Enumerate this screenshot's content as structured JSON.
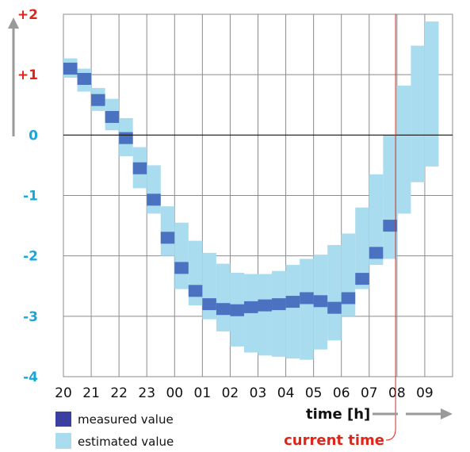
{
  "chart_data": {
    "type": "range-bar",
    "categories": [
      "20",
      "21",
      "22",
      "23",
      "00",
      "01",
      "02",
      "03",
      "04",
      "05",
      "06",
      "07",
      "08",
      "09"
    ],
    "ylim": [
      -4,
      2
    ],
    "y_ticks": [
      {
        "value": 2,
        "label": "+2",
        "color": "#e0261b"
      },
      {
        "value": 1,
        "label": "+1",
        "color": "#e0261b"
      },
      {
        "value": 0,
        "label": "0",
        "color": "#1aa6d9"
      },
      {
        "value": -1,
        "label": "-1",
        "color": "#1aa6d9"
      },
      {
        "value": -2,
        "label": "-2",
        "color": "#1aa6d9"
      },
      {
        "value": -3,
        "label": "-3",
        "color": "#1aa6d9"
      },
      {
        "value": -4,
        "label": "-4",
        "color": "#1aa6d9"
      }
    ],
    "x_domain": [
      20,
      33
    ],
    "series": [
      {
        "name": "measured value",
        "color": "#4a72c0",
        "points": [
          {
            "x": 20.25,
            "y": 1.1
          },
          {
            "x": 20.75,
            "y": 0.93
          },
          {
            "x": 21.25,
            "y": 0.58
          },
          {
            "x": 21.75,
            "y": 0.3
          },
          {
            "x": 22.25,
            "y": -0.05
          },
          {
            "x": 22.75,
            "y": -0.55
          },
          {
            "x": 23.25,
            "y": -1.07
          },
          {
            "x": 23.75,
            "y": -1.7
          },
          {
            "x": 24.25,
            "y": -2.2
          },
          {
            "x": 24.75,
            "y": -2.58
          },
          {
            "x": 25.25,
            "y": -2.8
          },
          {
            "x": 25.75,
            "y": -2.88
          },
          {
            "x": 26.25,
            "y": -2.9
          },
          {
            "x": 26.75,
            "y": -2.85
          },
          {
            "x": 27.25,
            "y": -2.82
          },
          {
            "x": 27.75,
            "y": -2.8
          },
          {
            "x": 28.25,
            "y": -2.76
          },
          {
            "x": 28.75,
            "y": -2.7
          },
          {
            "x": 29.25,
            "y": -2.75
          },
          {
            "x": 29.75,
            "y": -2.86
          },
          {
            "x": 30.25,
            "y": -2.7
          },
          {
            "x": 30.75,
            "y": -2.38
          },
          {
            "x": 31.25,
            "y": -1.95
          },
          {
            "x": 31.75,
            "y": -1.5
          }
        ]
      },
      {
        "name": "estimated value",
        "color": "#a8dcee",
        "ranges": [
          {
            "x": 20.25,
            "low": 0.95,
            "high": 1.27
          },
          {
            "x": 20.75,
            "low": 0.72,
            "high": 1.1
          },
          {
            "x": 21.25,
            "low": 0.4,
            "high": 0.78
          },
          {
            "x": 21.75,
            "low": 0.08,
            "high": 0.6
          },
          {
            "x": 22.25,
            "low": -0.35,
            "high": 0.28
          },
          {
            "x": 22.75,
            "low": -0.88,
            "high": -0.2
          },
          {
            "x": 23.25,
            "low": -1.3,
            "high": -0.5
          },
          {
            "x": 23.75,
            "low": -2.0,
            "high": -1.18
          },
          {
            "x": 24.25,
            "low": -2.55,
            "high": -1.45
          },
          {
            "x": 24.75,
            "low": -2.82,
            "high": -1.75
          },
          {
            "x": 25.25,
            "low": -3.05,
            "high": -1.95
          },
          {
            "x": 25.75,
            "low": -3.25,
            "high": -2.13
          },
          {
            "x": 26.25,
            "low": -3.5,
            "high": -2.28
          },
          {
            "x": 26.75,
            "low": -3.6,
            "high": -2.3
          },
          {
            "x": 27.25,
            "low": -3.65,
            "high": -2.3
          },
          {
            "x": 27.75,
            "low": -3.67,
            "high": -2.25
          },
          {
            "x": 28.25,
            "low": -3.7,
            "high": -2.15
          },
          {
            "x": 28.75,
            "low": -3.72,
            "high": -2.05
          },
          {
            "x": 29.25,
            "low": -3.55,
            "high": -1.98
          },
          {
            "x": 29.75,
            "low": -3.4,
            "high": -1.82
          },
          {
            "x": 30.25,
            "low": -3.0,
            "high": -1.63
          },
          {
            "x": 30.75,
            "low": -2.55,
            "high": -1.2
          },
          {
            "x": 31.25,
            "low": -2.15,
            "high": -0.65
          },
          {
            "x": 31.75,
            "low": -2.05,
            "high": 0.0
          },
          {
            "x": 32.25,
            "low": -1.3,
            "high": 0.82
          },
          {
            "x": 32.75,
            "low": -0.78,
            "high": 1.48
          },
          {
            "x": 33.25,
            "low": -0.52,
            "high": 1.88
          }
        ]
      }
    ],
    "current_time": {
      "label": "current time",
      "x": 31.95,
      "color": "#e0261b"
    },
    "xlabel": "time [h]",
    "legend": [
      {
        "label": "measured value",
        "color": "#3a3fa0"
      },
      {
        "label": "estimated value",
        "color": "#a8dcee"
      }
    ],
    "grid": true
  }
}
